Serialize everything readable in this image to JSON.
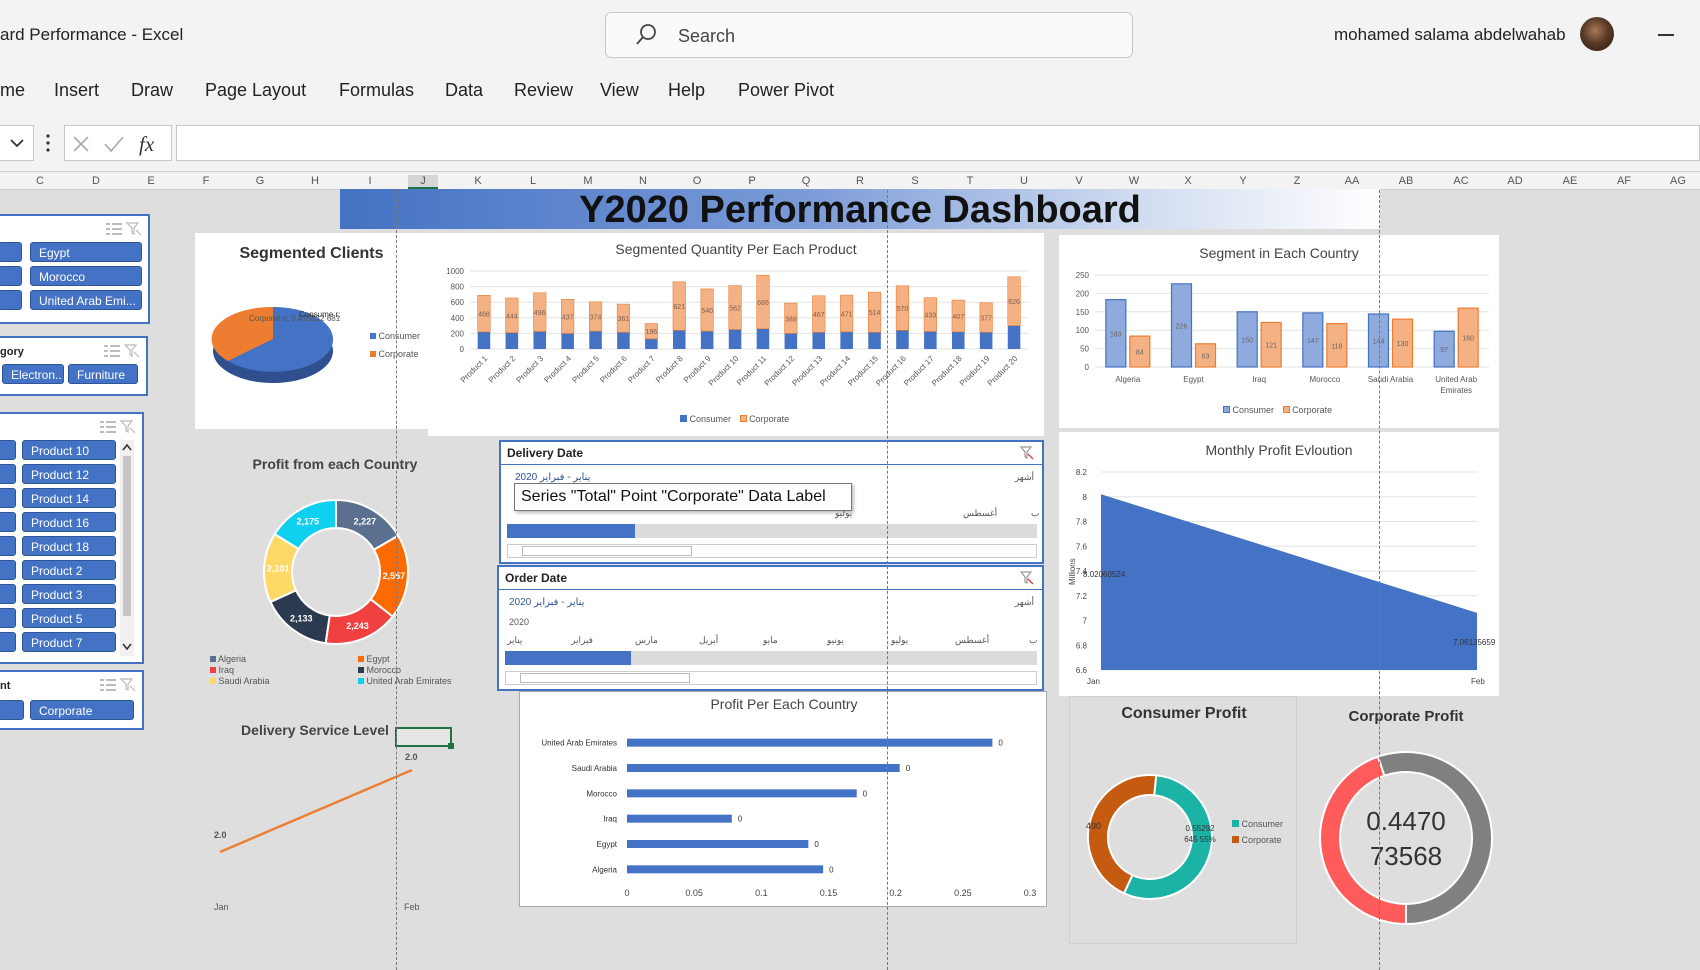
{
  "window": {
    "title": "ard Performance  -  Excel",
    "search_placeholder": "Search",
    "user_name": "mohamed salama abdelwahab"
  },
  "ribbon": {
    "tabs": [
      "me",
      "Insert",
      "Draw",
      "Page Layout",
      "Formulas",
      "Data",
      "Review",
      "View",
      "Help",
      "Power Pivot"
    ]
  },
  "formula_bar": {
    "fx": "fx",
    "value": ""
  },
  "columns": [
    "C",
    "D",
    "E",
    "F",
    "G",
    "H",
    "I",
    "J",
    "K",
    "L",
    "M",
    "N",
    "O",
    "P",
    "Q",
    "R",
    "S",
    "T",
    "U",
    "V",
    "W",
    "X",
    "Y",
    "Z",
    "AA",
    "AB",
    "AC",
    "AD",
    "AE",
    "AF",
    "AG"
  ],
  "dashboard_title": "Y2020 Performance Dashboard",
  "slicers": {
    "country": {
      "items": [
        "Egypt",
        "Morocco",
        "United Arab Emi..."
      ]
    },
    "category": {
      "title": "gory",
      "items": [
        "Electron...",
        "Furniture"
      ]
    },
    "product": {
      "items": [
        "Product 10",
        "Product 12",
        "Product 14",
        "Product 16",
        "Product 18",
        "Product 2",
        "Product 3",
        "Product 5",
        "Product 7"
      ]
    },
    "segment": {
      "title": "nt",
      "items": [
        "Corporate"
      ]
    }
  },
  "charts": {
    "segmented_clients": {
      "title": "Segmented Clients",
      "labels": [
        "Corporat e; 0.416512 681",
        "Consume r; 0.583487"
      ],
      "legend": [
        "Consumer",
        "Corporate"
      ],
      "colors": [
        "#4472c4",
        "#ed7d31"
      ]
    },
    "segmented_quantity": {
      "title": "Segmented Quantity Per Each Product",
      "legend": [
        "Consumer",
        "Corporate"
      ]
    },
    "segment_country": {
      "title": "Segment in Each Country",
      "legend": [
        "Consumer",
        "Corporate"
      ]
    },
    "profit_country_donut": {
      "title": "Profit from each Country",
      "legend": [
        "Algeria",
        "Egypt",
        "Iraq",
        "Morocco",
        "Saudi Arabia",
        "United Arab Emirates"
      ]
    },
    "monthly_profit": {
      "title": "Monthly Profit Evloution",
      "ylabel": "Millions",
      "labels": [
        "8.02060524",
        "7.06135659"
      ]
    },
    "delivery_service": {
      "title": "Delivery Service Level",
      "labels": [
        "2.0",
        "2.0"
      ]
    },
    "profit_per_country": {
      "title": "Profit Per Each Country"
    },
    "consumer_profit": {
      "title": "Consumer Profit",
      "labels": [
        "490",
        "0.55292 645 55%"
      ],
      "legend": [
        "Consumer",
        "Corporate"
      ]
    },
    "corporate_profit": {
      "title": "Corporate Profit",
      "value_line1": "0.4470",
      "value_line2": "73568"
    }
  },
  "chart_data": [
    {
      "type": "pie",
      "title": "Segmented Clients",
      "categories": [
        "Consumer",
        "Corporate"
      ],
      "values": [
        0.583487,
        0.416512681
      ]
    },
    {
      "type": "bar",
      "title": "Segmented Quantity Per Each Product",
      "categories": [
        "Product 1",
        "Product 2",
        "Product 3",
        "Product 4",
        "Product 5",
        "Product 6",
        "Product 7",
        "Product 8",
        "Product 9",
        "Product 10",
        "Product 11",
        "Product 12",
        "Product 13",
        "Product 14",
        "Product 15",
        "Product 16",
        "Product 17",
        "Product 18",
        "Product 19",
        "Product 20"
      ],
      "series": [
        {
          "name": "Consumer",
          "values": [
            220,
            210,
            225,
            200,
            230,
            215,
            130,
            240,
            230,
            250,
            260,
            200,
            215,
            220,
            215,
            240,
            225,
            220,
            215,
            300
          ]
        },
        {
          "name": "Corporate",
          "values": [
            468,
            444,
            496,
            437,
            374,
            361,
            196,
            621,
            540,
            562,
            686,
            388,
            467,
            471,
            514,
            570,
            433,
            407,
            377,
            626
          ]
        }
      ],
      "ylim": [
        0,
        1000
      ],
      "yticks": [
        0,
        200,
        400,
        600,
        800,
        1000
      ]
    },
    {
      "type": "bar",
      "title": "Segment in Each Country",
      "categories": [
        "Algeria",
        "Egypt",
        "Iraq",
        "Morocco",
        "Saudi Arabia",
        "United Arab Emirates"
      ],
      "series": [
        {
          "name": "Consumer",
          "values": [
            183,
            226,
            150,
            147,
            144,
            97
          ]
        },
        {
          "name": "Corporate",
          "values": [
            84,
            63,
            121,
            118,
            130,
            160
          ]
        }
      ],
      "ylim": [
        0,
        250
      ],
      "yticks": [
        0,
        50,
        100,
        150,
        200,
        250
      ]
    },
    {
      "type": "pie",
      "title": "Profit from each Country",
      "categories": [
        "Algeria",
        "Egypt",
        "Iraq",
        "Morocco",
        "Saudi Arabia",
        "United Arab Emirates"
      ],
      "values": [
        2227,
        2557,
        2243,
        2133,
        2101,
        2175
      ],
      "data_labels": [
        "2,227",
        "2,557",
        "2,243",
        "2,133",
        "2,101",
        "2,175"
      ]
    },
    {
      "type": "area",
      "title": "Monthly Profit Evloution",
      "categories": [
        "Jan",
        "Feb"
      ],
      "values": [
        8.02060524,
        7.06135659
      ],
      "ylabel": "Millions",
      "ylim": [
        6.6,
        8.2
      ],
      "yticks": [
        6.6,
        6.8,
        7,
        7.2,
        7.4,
        7.6,
        7.8,
        8,
        8.2
      ]
    },
    {
      "type": "line",
      "title": "Delivery Service Level",
      "categories": [
        "Jan",
        "Feb"
      ],
      "values": [
        2.0,
        2.0
      ]
    },
    {
      "type": "bar",
      "title": "Profit Per Each Country",
      "categories": [
        "United Arab Emirates",
        "Saudi Arabia",
        "Morocco",
        "Iraq",
        "Egypt",
        "Algeria"
      ],
      "values": [
        0.272,
        0.203,
        0.171,
        0.078,
        0.135,
        0.146
      ],
      "data_labels": [
        "0",
        "0",
        "0",
        "0",
        "0",
        "0"
      ],
      "xlim": [
        0,
        0.3
      ],
      "xticks": [
        "0",
        "0.05",
        "0.1",
        "0.15",
        "0.2",
        "0.25",
        "0.3"
      ]
    },
    {
      "type": "pie",
      "title": "Consumer Profit",
      "categories": [
        "Consumer",
        "Corporate"
      ],
      "values": [
        0.55292645,
        0.44707355
      ]
    },
    {
      "type": "pie",
      "title": "Corporate Profit",
      "categories": [
        "Corporate",
        "Consumer"
      ],
      "values": [
        0.447073568,
        0.552926432
      ]
    }
  ],
  "timelines": {
    "delivery": {
      "title": "Delivery Date",
      "range": "يناير - فبراير 2020",
      "unit": "أشهر",
      "year": "2",
      "months": [
        "يوليو",
        "أغسطس",
        "ب"
      ]
    },
    "order": {
      "title": "Order Date",
      "range": "يناير - فبراير 2020",
      "unit": "أشهر",
      "year": "2020",
      "months": [
        "يناير",
        "فبراير",
        "مارس",
        "أبريل",
        "مايو",
        "يونيو",
        "يوليو",
        "أغسطس",
        "ب"
      ]
    }
  },
  "tooltip": "Series \"Total\" Point \"Corporate\" Data Label"
}
